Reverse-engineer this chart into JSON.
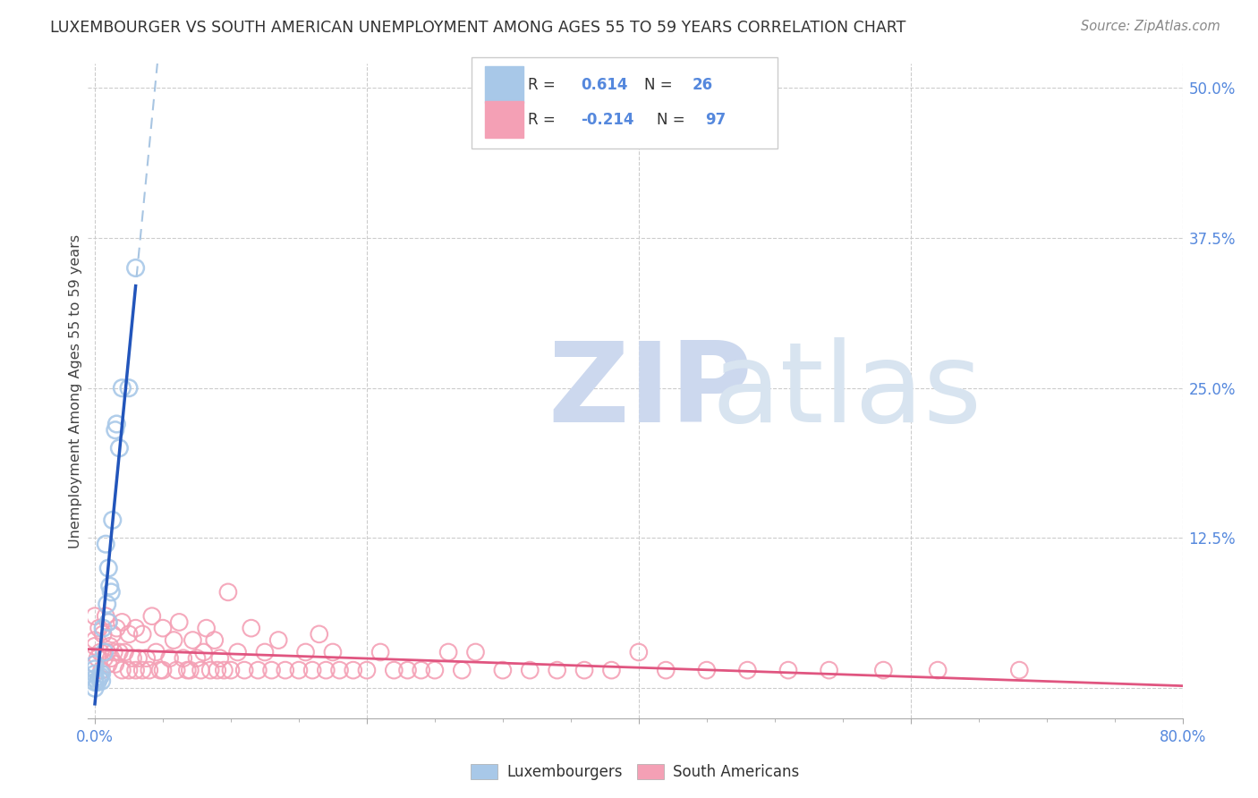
{
  "title": "LUXEMBOURGER VS SOUTH AMERICAN UNEMPLOYMENT AMONG AGES 55 TO 59 YEARS CORRELATION CHART",
  "source": "Source: ZipAtlas.com",
  "ylabel": "Unemployment Among Ages 55 to 59 years",
  "xlim": [
    -0.005,
    0.8
  ],
  "ylim": [
    -0.025,
    0.52
  ],
  "xtick_positions": [
    0.0,
    0.2,
    0.4,
    0.6,
    0.8
  ],
  "xtick_labels_shown": [
    "0.0%",
    "",
    "",
    "",
    "80.0%"
  ],
  "xtick_minor": [
    0.05,
    0.1,
    0.15,
    0.25,
    0.3,
    0.35,
    0.45,
    0.5,
    0.55,
    0.65,
    0.7,
    0.75
  ],
  "yticks_right": [
    0.125,
    0.25,
    0.375,
    0.5
  ],
  "ytick_labels_right": [
    "12.5%",
    "25.0%",
    "37.5%",
    "50.0%"
  ],
  "lux_scatter_color": "#a8c8e8",
  "lux_line_color": "#2255bb",
  "lux_dash_color": "#99bbdd",
  "sa_scatter_color": "#f4a0b5",
  "sa_line_color": "#e05580",
  "R_lux": 0.614,
  "N_lux": 26,
  "R_sa": -0.214,
  "N_sa": 97,
  "lux_x": [
    0.0,
    0.0,
    0.0,
    0.0,
    0.0,
    0.0,
    0.002,
    0.003,
    0.004,
    0.005,
    0.005,
    0.006,
    0.007,
    0.008,
    0.009,
    0.01,
    0.01,
    0.011,
    0.012,
    0.013,
    0.015,
    0.016,
    0.018,
    0.02,
    0.025,
    0.03
  ],
  "lux_y": [
    0.0,
    0.005,
    0.008,
    0.012,
    0.016,
    0.02,
    0.005,
    0.008,
    0.01,
    0.006,
    0.012,
    0.05,
    0.03,
    0.12,
    0.07,
    0.055,
    0.1,
    0.085,
    0.08,
    0.14,
    0.215,
    0.22,
    0.2,
    0.25,
    0.25,
    0.35
  ],
  "sa_x": [
    0.0,
    0.0,
    0.0,
    0.0,
    0.002,
    0.003,
    0.004,
    0.005,
    0.006,
    0.007,
    0.008,
    0.009,
    0.01,
    0.01,
    0.011,
    0.012,
    0.013,
    0.014,
    0.015,
    0.016,
    0.018,
    0.02,
    0.02,
    0.022,
    0.025,
    0.025,
    0.028,
    0.03,
    0.03,
    0.032,
    0.035,
    0.035,
    0.038,
    0.04,
    0.042,
    0.045,
    0.048,
    0.05,
    0.05,
    0.055,
    0.058,
    0.06,
    0.062,
    0.065,
    0.068,
    0.07,
    0.072,
    0.075,
    0.078,
    0.08,
    0.082,
    0.085,
    0.088,
    0.09,
    0.092,
    0.095,
    0.098,
    0.1,
    0.105,
    0.11,
    0.115,
    0.12,
    0.125,
    0.13,
    0.135,
    0.14,
    0.15,
    0.155,
    0.16,
    0.165,
    0.17,
    0.175,
    0.18,
    0.19,
    0.2,
    0.21,
    0.22,
    0.23,
    0.24,
    0.25,
    0.26,
    0.27,
    0.28,
    0.3,
    0.32,
    0.34,
    0.36,
    0.38,
    0.4,
    0.42,
    0.45,
    0.48,
    0.51,
    0.54,
    0.58,
    0.62,
    0.68
  ],
  "sa_y": [
    0.02,
    0.04,
    0.06,
    0.035,
    0.025,
    0.05,
    0.03,
    0.015,
    0.045,
    0.025,
    0.06,
    0.03,
    0.02,
    0.055,
    0.035,
    0.025,
    0.045,
    0.03,
    0.02,
    0.05,
    0.03,
    0.015,
    0.055,
    0.03,
    0.015,
    0.045,
    0.025,
    0.015,
    0.05,
    0.025,
    0.015,
    0.045,
    0.025,
    0.015,
    0.06,
    0.03,
    0.015,
    0.015,
    0.05,
    0.025,
    0.04,
    0.015,
    0.055,
    0.025,
    0.015,
    0.015,
    0.04,
    0.025,
    0.015,
    0.03,
    0.05,
    0.015,
    0.04,
    0.015,
    0.025,
    0.015,
    0.08,
    0.015,
    0.03,
    0.015,
    0.05,
    0.015,
    0.03,
    0.015,
    0.04,
    0.015,
    0.015,
    0.03,
    0.015,
    0.045,
    0.015,
    0.03,
    0.015,
    0.015,
    0.015,
    0.03,
    0.015,
    0.015,
    0.015,
    0.015,
    0.03,
    0.015,
    0.03,
    0.015,
    0.015,
    0.015,
    0.015,
    0.015,
    0.03,
    0.015,
    0.015,
    0.015,
    0.015,
    0.015,
    0.015,
    0.015,
    0.015
  ],
  "background_color": "#ffffff",
  "grid_color": "#cccccc",
  "title_color": "#333333",
  "axis_tick_color": "#5588dd",
  "ylabel_color": "#444444"
}
